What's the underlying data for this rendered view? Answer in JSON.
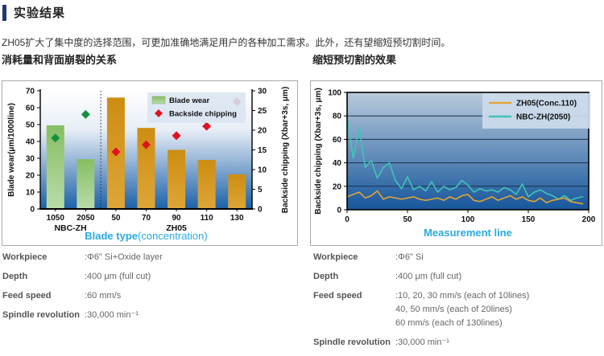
{
  "header": {
    "title": "实验结果"
  },
  "intro": "ZH05扩大了集中度的选择范围，可更加准确地满足用户的各种加工需求。此外，还有望缩短预切割时间。",
  "colors": {
    "accent_cyan": "#29aae1",
    "header_bar": "#1e3a6e",
    "bar_green": [
      "#86be62",
      "#b9dcaa"
    ],
    "bar_orange": [
      "#cd8d12",
      "#dda637"
    ],
    "diamond_green": "#129140",
    "diamond_red": "#e01320",
    "line_orange": "#e2a435",
    "line_teal": "#41c4b8",
    "left_plot_gradient": [
      "#ffffff",
      "#e7eef6",
      "#7ba3cd",
      "#1c61a8"
    ],
    "right_plot_gradient": [
      "#b9cadb",
      "#16569c"
    ],
    "gridline": "#1a2f45",
    "legend_bg_left": "#d9e5f1",
    "legend_bg_right": "#ccdbec"
  },
  "chart_data": [
    {
      "type": "bar",
      "title": "消耗量和背面崩裂的关系",
      "categories": [
        "1050",
        "2050",
        "50",
        "70",
        "90",
        "110",
        "130"
      ],
      "category_groups": [
        {
          "label": "NBC-ZH",
          "from": 0,
          "to": 1
        },
        {
          "label": "ZH05",
          "from": 2,
          "to": 6
        }
      ],
      "series": [
        {
          "name": "Blade wear",
          "type": "bar",
          "axis": "left",
          "values": [
            49.5,
            29.5,
            66,
            48,
            35,
            29,
            20.5
          ]
        },
        {
          "name": "Backside chipping",
          "type": "scatter",
          "axis": "right",
          "values": [
            18,
            24,
            14.5,
            16.3,
            18.6,
            21,
            27.2
          ],
          "point_colors": [
            "#129140",
            "#129140",
            "#e01320",
            "#e01320",
            "#e01320",
            "#e01320",
            "#e01320"
          ]
        }
      ],
      "xlabel_main": "Blade type",
      "xlabel_sub": "(concentration)",
      "ylabel_left": "Blade wear(μm/1000line)",
      "ylabel_right": "Backside chipping (Xbar+3s, μm)",
      "ylim_left": [
        0,
        70
      ],
      "yticks_left": [
        0,
        10,
        20,
        30,
        40,
        50,
        60,
        70
      ],
      "ylim_right": [
        0,
        30
      ],
      "yticks_right": [
        0,
        5,
        10,
        15,
        20,
        25,
        30
      ],
      "legend": [
        "Blade wear",
        "Backside chipping"
      ],
      "legend_position": "top-right-inside",
      "grid": false
    },
    {
      "type": "line",
      "title": "缩短预切割的效果",
      "x": [
        0,
        5,
        10,
        15,
        20,
        25,
        30,
        35,
        40,
        45,
        50,
        55,
        60,
        65,
        70,
        75,
        80,
        85,
        90,
        95,
        100,
        105,
        110,
        115,
        120,
        125,
        130,
        135,
        140,
        145,
        150,
        155,
        160,
        165,
        170,
        175,
        180,
        185,
        190,
        195
      ],
      "series": [
        {
          "name": "ZH05(Conc.110)",
          "values": [
            11,
            13,
            15,
            10,
            12,
            16,
            9,
            11,
            10,
            9,
            10,
            11,
            9,
            8,
            9,
            10,
            8,
            11,
            9,
            12,
            13,
            8,
            7,
            9,
            11,
            8,
            10,
            12,
            9,
            11,
            8,
            7,
            10,
            6,
            8,
            9,
            10,
            7,
            6,
            5
          ]
        },
        {
          "name": "NBC-ZH(2050)",
          "values": [
            80,
            44,
            70,
            36,
            42,
            27,
            36,
            40,
            25,
            18,
            28,
            17,
            20,
            16,
            24,
            15,
            20,
            17,
            19,
            25,
            21,
            15,
            18,
            16,
            17,
            15,
            19,
            17,
            13,
            22,
            11,
            15,
            17,
            14,
            12,
            9,
            12,
            8,
            10,
            11
          ]
        }
      ],
      "xlabel": "Measurement line",
      "ylabel": "Backside chipping (Xbar+3s, μm)",
      "xlim": [
        0,
        200
      ],
      "xticks": [
        0,
        50,
        100,
        150,
        200
      ],
      "ylim": [
        0,
        100
      ],
      "yticks": [
        0,
        20,
        40,
        60,
        80,
        100
      ],
      "legend": [
        "ZH05(Conc.110)",
        "NBC-ZH(2050)"
      ],
      "legend_position": "top-right-inside",
      "grid": true
    }
  ],
  "left_specs": {
    "rows": [
      {
        "label": "Workpiece",
        "value": ":Φ6\" Si+Oxide layer"
      },
      {
        "label": "Depth",
        "value": ":400 μm (full cut)"
      },
      {
        "label": "Feed speed",
        "value": ":60 mm/s"
      },
      {
        "label": "Spindle revolution",
        "value": ":30,000 min⁻¹"
      }
    ]
  },
  "right_specs": {
    "rows": [
      {
        "label": "Workpiece",
        "value": ":Φ6\" Si"
      },
      {
        "label": "Depth",
        "value": ":400 μm (full cut)"
      },
      {
        "label": "Feed speed",
        "value": [
          ":10, 20, 30 mm/s  (each of 10lines)",
          "40, 50 mm/s  (each of 20lines)",
          "60 mm/s  (each of 130lines)"
        ]
      },
      {
        "label": "Spindle revolution",
        "value": ":30,000 min⁻¹"
      }
    ]
  }
}
